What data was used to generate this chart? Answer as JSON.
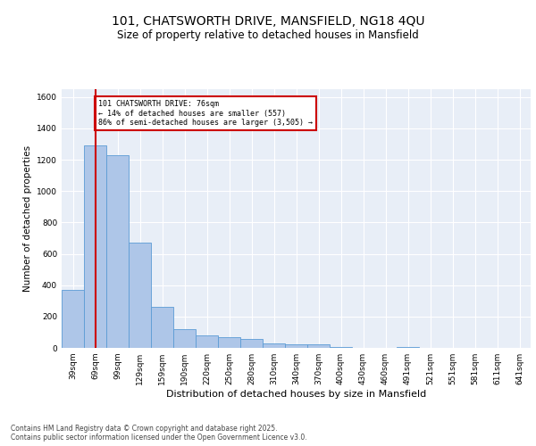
{
  "title_line1": "101, CHATSWORTH DRIVE, MANSFIELD, NG18 4QU",
  "title_line2": "Size of property relative to detached houses in Mansfield",
  "xlabel": "Distribution of detached houses by size in Mansfield",
  "ylabel": "Number of detached properties",
  "categories": [
    "39sqm",
    "69sqm",
    "99sqm",
    "129sqm",
    "159sqm",
    "190sqm",
    "220sqm",
    "250sqm",
    "280sqm",
    "310sqm",
    "340sqm",
    "370sqm",
    "400sqm",
    "430sqm",
    "460sqm",
    "491sqm",
    "521sqm",
    "551sqm",
    "581sqm",
    "611sqm",
    "641sqm"
  ],
  "values": [
    370,
    1290,
    1230,
    670,
    260,
    120,
    80,
    70,
    55,
    30,
    25,
    20,
    5,
    0,
    0,
    5,
    0,
    0,
    0,
    0,
    0
  ],
  "bar_color": "#aec6e8",
  "bar_edge_color": "#5b9bd5",
  "background_color": "#e8eef7",
  "grid_color": "#ffffff",
  "red_line_x": 1,
  "red_line_color": "#cc0000",
  "annotation_text": "101 CHATSWORTH DRIVE: 76sqm\n← 14% of detached houses are smaller (557)\n86% of semi-detached houses are larger (3,505) →",
  "annotation_box_color": "#cc0000",
  "ylim": [
    0,
    1650
  ],
  "yticks": [
    0,
    200,
    400,
    600,
    800,
    1000,
    1200,
    1400,
    1600
  ],
  "footer_text": "Contains HM Land Registry data © Crown copyright and database right 2025.\nContains public sector information licensed under the Open Government Licence v3.0.",
  "title_fontsize": 10,
  "subtitle_fontsize": 8.5,
  "axis_label_fontsize": 7.5,
  "tick_fontsize": 6.5,
  "footer_fontsize": 5.5
}
